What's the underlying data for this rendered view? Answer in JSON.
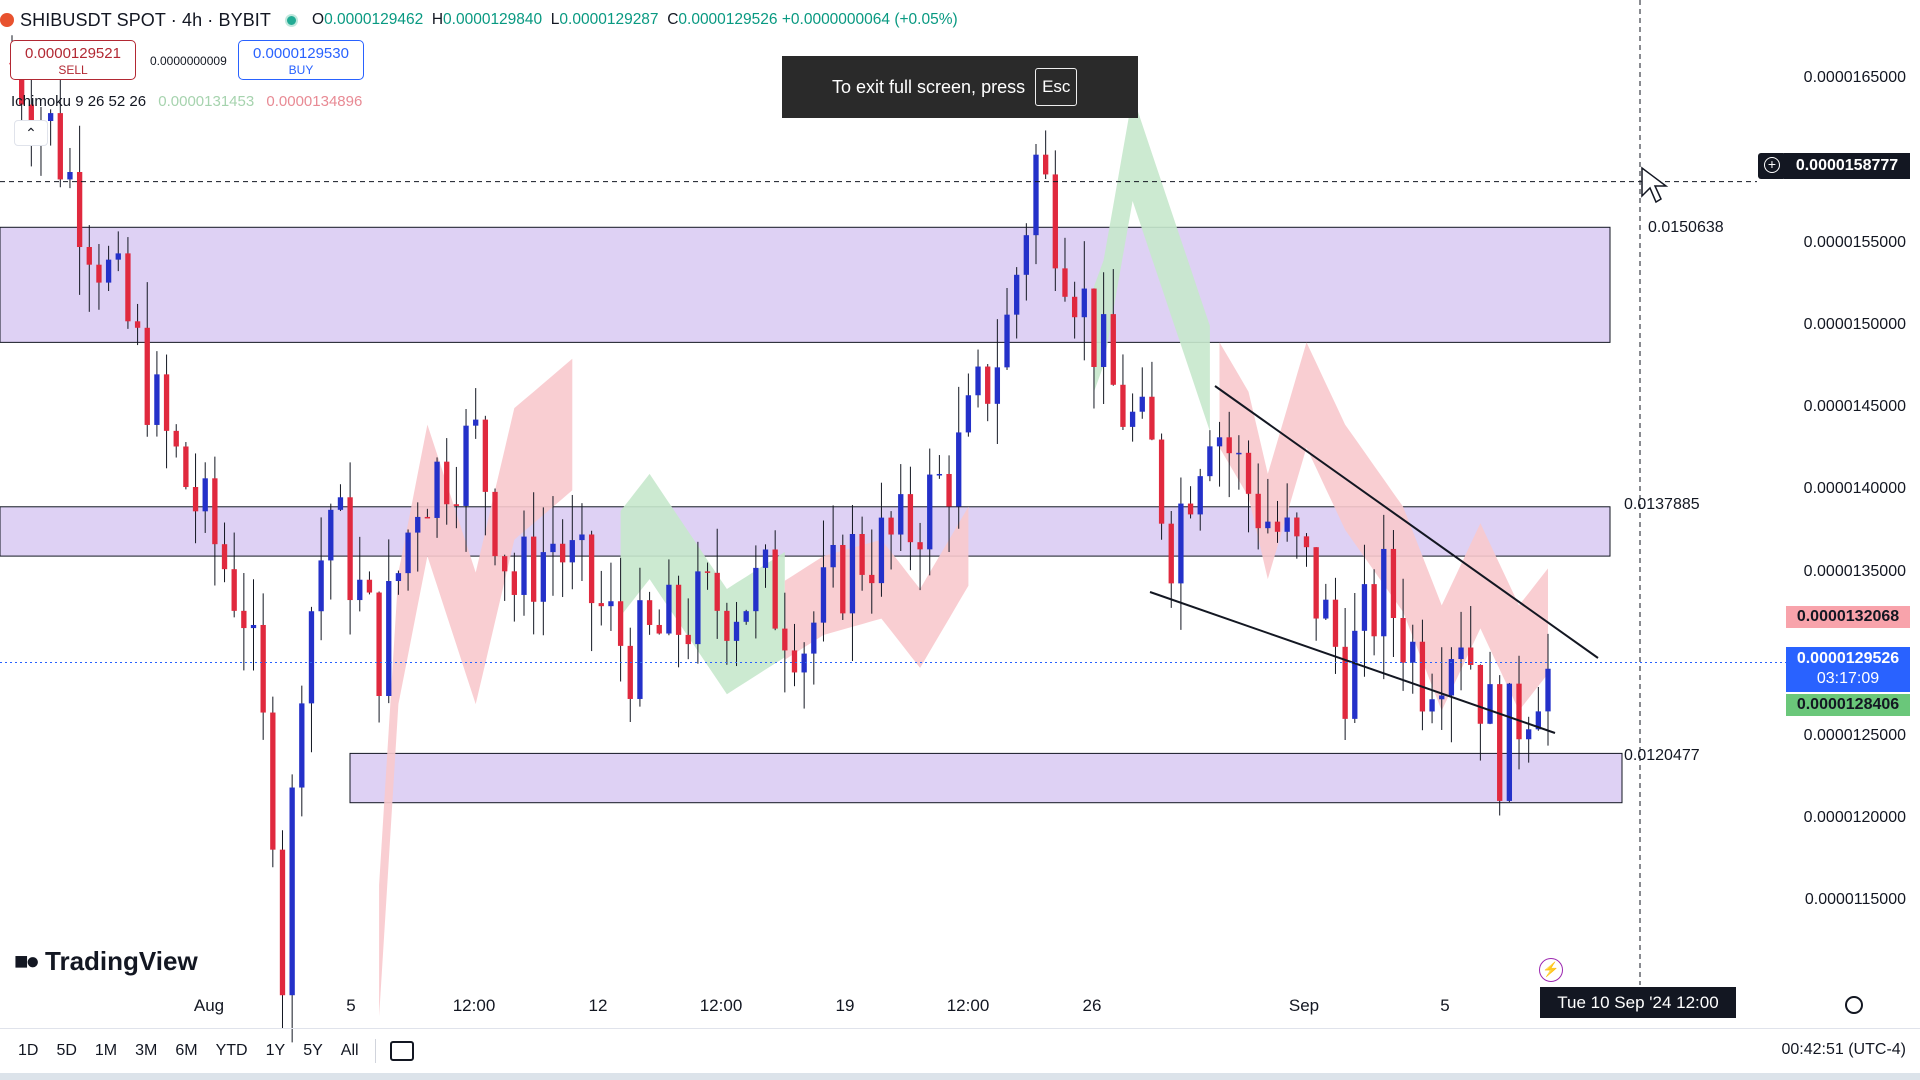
{
  "header": {
    "symbol": "SHIBUSDT SPOT · 4h · BYBIT",
    "ohlc": {
      "open_label": "O",
      "open": "0.0000129462",
      "high_label": "H",
      "high": "0.0000129840",
      "low_label": "L",
      "low": "0.0000129287",
      "close_label": "C",
      "close": "0.0000129526",
      "change": "+0.0000000064 (+0.05%)"
    }
  },
  "trade": {
    "sell_price": "0.0000129521",
    "sell_label": "SELL",
    "spread": "0.0000000009",
    "buy_price": "0.0000129530",
    "buy_label": "BUY"
  },
  "indicator": {
    "name": "Ichimoku 9 26 52 26",
    "value1": "0.0000131453",
    "value2": "0.0000134896"
  },
  "fullscreen_toast": {
    "text": "To exit full screen, press",
    "key": "Esc"
  },
  "price_axis": {
    "labels": [
      "0.0000165000",
      "0.0000160000",
      "0.0000155000",
      "0.0000150000",
      "0.0000145000",
      "0.0000140000",
      "0.0000135000",
      "0.0000125000",
      "0.0000120000",
      "0.0000115000"
    ],
    "crosshair_price": "0.0000158777",
    "senkou_a_price": "0.0000132068",
    "last_price": "0.0000129526",
    "countdown": "03:17:09",
    "senkou_b_price": "0.0000128406"
  },
  "fib_levels": [
    "0.0150638",
    "0.0137885",
    "0.0120477"
  ],
  "time_axis": {
    "labels": [
      "Aug",
      "5",
      "12:00",
      "12",
      "12:00",
      "19",
      "12:00",
      "26",
      "Sep",
      "5"
    ],
    "crosshair_time": "Tue 10 Sep '24   12:00"
  },
  "bottom_bar": {
    "ranges": [
      "1D",
      "5D",
      "1M",
      "3M",
      "6M",
      "YTD",
      "1Y",
      "5Y",
      "All"
    ],
    "clock": "00:42:51 (UTC-4)"
  },
  "branding": {
    "logo_text": "TradingView"
  },
  "colors": {
    "up": "#2431c9",
    "down": "#e0293e",
    "zone_fill": "#d8c9f2",
    "cloud_bull": "#c6e8cc",
    "cloud_bear": "#f8c9cd",
    "last_price_bg": "#2962ff",
    "senkou_a_bg": "#f8a3ab",
    "senkou_b_bg": "#6ac77a"
  },
  "chart_data": {
    "type": "candlestick",
    "symbol": "SHIBUSDT",
    "interval": "4h",
    "ylim": [
      1.09e-05,
      1.68e-05
    ],
    "x_ticks": [
      "Aug",
      "5",
      "12:00",
      "12",
      "12:00",
      "19",
      "12:00",
      "26",
      "Sep",
      "5"
    ],
    "waypoints": [
      {
        "i": 0,
        "price": 1.66e-05
      },
      {
        "i": 4,
        "price": 1.62e-05
      },
      {
        "i": 8,
        "price": 1.56e-05
      },
      {
        "i": 12,
        "price": 1.5e-05
      },
      {
        "i": 16,
        "price": 1.43e-05
      },
      {
        "i": 20,
        "price": 1.38e-05
      },
      {
        "i": 24,
        "price": 1.33e-05
      },
      {
        "i": 27,
        "price": 1.21e-05
      },
      {
        "i": 28,
        "price": 1.11e-05
      },
      {
        "i": 30,
        "price": 1.3e-05
      },
      {
        "i": 33,
        "price": 1.39e-05
      },
      {
        "i": 38,
        "price": 1.3e-05
      },
      {
        "i": 42,
        "price": 1.4e-05
      },
      {
        "i": 48,
        "price": 1.43e-05
      },
      {
        "i": 52,
        "price": 1.34e-05
      },
      {
        "i": 56,
        "price": 1.37e-05
      },
      {
        "i": 64,
        "price": 1.3e-05
      },
      {
        "i": 72,
        "price": 1.33e-05
      },
      {
        "i": 78,
        "price": 1.34e-05
      },
      {
        "i": 82,
        "price": 1.31e-05
      },
      {
        "i": 87,
        "price": 1.36e-05
      },
      {
        "i": 92,
        "price": 1.37e-05
      },
      {
        "i": 98,
        "price": 1.42e-05
      },
      {
        "i": 103,
        "price": 1.5e-05
      },
      {
        "i": 106,
        "price": 1.6e-05
      },
      {
        "i": 110,
        "price": 1.53e-05
      },
      {
        "i": 114,
        "price": 1.46e-05
      },
      {
        "i": 118,
        "price": 1.42e-05
      },
      {
        "i": 120,
        "price": 1.37e-05
      },
      {
        "i": 124,
        "price": 1.45e-05
      },
      {
        "i": 128,
        "price": 1.4e-05
      },
      {
        "i": 134,
        "price": 1.35e-05
      },
      {
        "i": 138,
        "price": 1.29e-05
      },
      {
        "i": 142,
        "price": 1.34e-05
      },
      {
        "i": 146,
        "price": 1.29e-05
      },
      {
        "i": 150,
        "price": 1.32e-05
      },
      {
        "i": 154,
        "price": 1.24e-05
      },
      {
        "i": 158,
        "price": 1.29e-05
      }
    ],
    "zones": [
      {
        "low": 1.49e-05,
        "high": 1.56e-05
      },
      {
        "low": 1.36e-05,
        "high": 1.39e-05
      },
      {
        "low": 1.21e-05,
        "high": 1.24e-05
      }
    ],
    "fib_levels": [
      0.0150638,
      0.0137885,
      0.0120477
    ],
    "crosshair_price": 1.58777e-05,
    "last_price": 1.29526e-05
  }
}
